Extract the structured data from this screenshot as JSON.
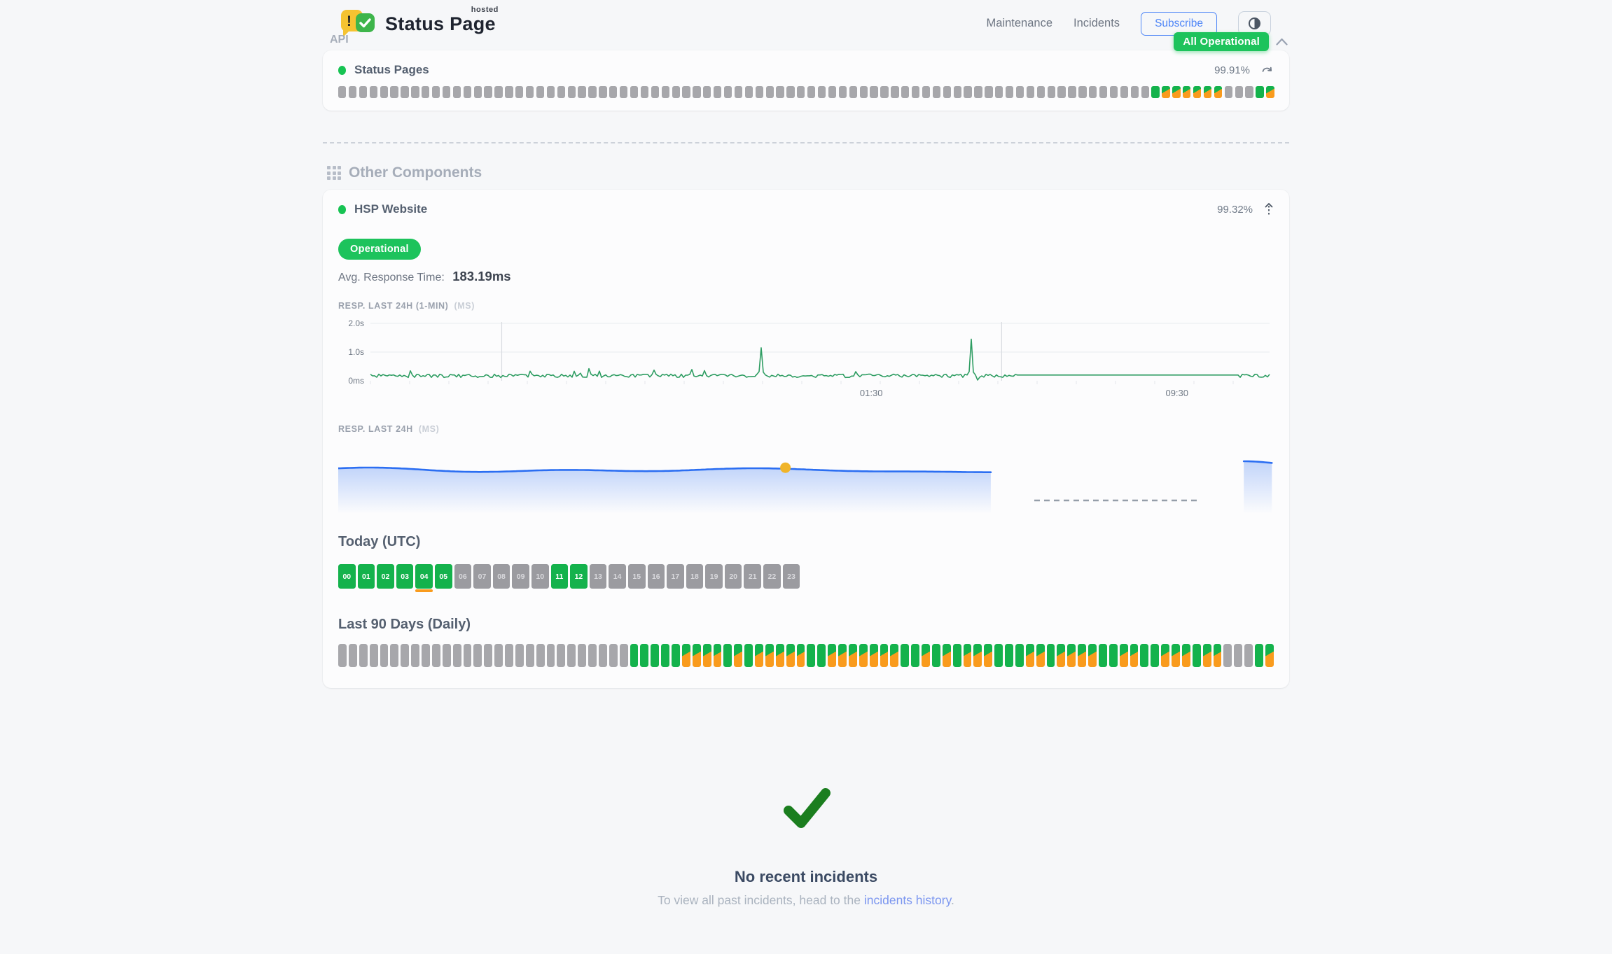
{
  "header": {
    "logo_title": "Status Page",
    "logo_superscript": "hosted",
    "logo_exclaim": "!",
    "nav": [
      {
        "label": "Maintenance"
      },
      {
        "label": "Incidents"
      }
    ],
    "subscribe_label": "Subscribe",
    "overall_status": "All Operational"
  },
  "api_section": {
    "title": "API",
    "component": {
      "name": "Status Pages",
      "uptime": "99.91%",
      "bars": [
        "n",
        "n",
        "n",
        "n",
        "n",
        "n",
        "n",
        "n",
        "n",
        "n",
        "n",
        "n",
        "n",
        "n",
        "n",
        "n",
        "n",
        "n",
        "n",
        "n",
        "n",
        "n",
        "n",
        "n",
        "n",
        "n",
        "n",
        "n",
        "n",
        "n",
        "n",
        "n",
        "n",
        "n",
        "n",
        "n",
        "n",
        "n",
        "n",
        "n",
        "n",
        "n",
        "n",
        "n",
        "n",
        "n",
        "n",
        "n",
        "n",
        "n",
        "n",
        "n",
        "n",
        "n",
        "n",
        "n",
        "n",
        "n",
        "n",
        "n",
        "n",
        "n",
        "n",
        "n",
        "n",
        "n",
        "n",
        "n",
        "n",
        "n",
        "n",
        "n",
        "n",
        "n",
        "n",
        "n",
        "n",
        "n",
        "u",
        "d",
        "d",
        "d",
        "d",
        "d",
        "d",
        "n",
        "n",
        "n",
        "u",
        "d"
      ]
    }
  },
  "other_components": {
    "title": "Other Components",
    "component": {
      "name": "HSP Website",
      "uptime": "99.32%",
      "status_label": "Operational",
      "avg_response_label": "Avg. Response Time:",
      "avg_response_value": "183.19ms",
      "today_title": "Today (UTC)",
      "last90_title": "Last 90 Days (Daily)",
      "hours": [
        {
          "label": "00",
          "status": "u"
        },
        {
          "label": "01",
          "status": "u"
        },
        {
          "label": "02",
          "status": "u"
        },
        {
          "label": "03",
          "status": "u"
        },
        {
          "label": "04",
          "status": "u",
          "marker": true
        },
        {
          "label": "05",
          "status": "u"
        },
        {
          "label": "06",
          "status": "n"
        },
        {
          "label": "07",
          "status": "n"
        },
        {
          "label": "08",
          "status": "n"
        },
        {
          "label": "09",
          "status": "n"
        },
        {
          "label": "10",
          "status": "n"
        },
        {
          "label": "11",
          "status": "u"
        },
        {
          "label": "12",
          "status": "u"
        },
        {
          "label": "13",
          "status": "n"
        },
        {
          "label": "14",
          "status": "n"
        },
        {
          "label": "15",
          "status": "n"
        },
        {
          "label": "16",
          "status": "n"
        },
        {
          "label": "17",
          "status": "n"
        },
        {
          "label": "18",
          "status": "n"
        },
        {
          "label": "19",
          "status": "n"
        },
        {
          "label": "20",
          "status": "n"
        },
        {
          "label": "21",
          "status": "n"
        },
        {
          "label": "22",
          "status": "n"
        },
        {
          "label": "23",
          "status": "n"
        }
      ],
      "days": [
        "n",
        "n",
        "n",
        "n",
        "n",
        "n",
        "n",
        "n",
        "n",
        "n",
        "n",
        "n",
        "n",
        "n",
        "n",
        "n",
        "n",
        "n",
        "n",
        "n",
        "n",
        "n",
        "n",
        "n",
        "n",
        "n",
        "n",
        "n",
        "u",
        "u",
        "u",
        "u",
        "u",
        "d",
        "d",
        "d",
        "d",
        "u",
        "d",
        "u",
        "d",
        "d",
        "d",
        "d",
        "d",
        "u",
        "u",
        "d",
        "d",
        "d",
        "d",
        "d",
        "d",
        "d",
        "u",
        "u",
        "d",
        "u",
        "d",
        "u",
        "d",
        "d",
        "d",
        "u",
        "u",
        "u",
        "d",
        "d",
        "u",
        "d",
        "d",
        "d",
        "d",
        "u",
        "u",
        "d",
        "d",
        "u",
        "u",
        "d",
        "d",
        "d",
        "u",
        "d",
        "d",
        "n",
        "n",
        "n",
        "u",
        "d"
      ]
    }
  },
  "incidents": {
    "title": "No recent incidents",
    "subtitle_prefix": "To view all past incidents, head to the",
    "link_text": "incidents history",
    "subtitle_suffix": "."
  },
  "chart_data": [
    {
      "type": "line",
      "title": "RESP. LAST 24H (1-MIN)",
      "unit": "(MS)",
      "ylim_ms": [
        0,
        2000
      ],
      "ylabel_ticks": [
        {
          "label": "2.0s",
          "ms": 2000
        },
        {
          "label": "1.0s",
          "ms": 1000
        },
        {
          "label": "0ms",
          "ms": 0
        }
      ],
      "x_ticks": [
        {
          "label": "01:30",
          "f": 0.557
        },
        {
          "label": "09:30",
          "f": 0.897
        }
      ],
      "baseline_ms": 180,
      "noise_band_ms": [
        115,
        230
      ],
      "spikes": [
        {
          "f": 0.435,
          "ms": 1150
        },
        {
          "f": 0.669,
          "ms": 1450
        }
      ],
      "dip": {
        "f": 0.676,
        "ms": 25
      },
      "flat_segment": {
        "from": 0.719,
        "to": 0.965,
        "ms": 200
      },
      "day_separators_f": [
        0.146,
        0.702
      ],
      "line_color": "#2e9d62",
      "grid": "horizontal"
    },
    {
      "type": "area",
      "title": "RESP. LAST 24H",
      "unit": "(MS)",
      "avg_ms": 183.19,
      "segments": [
        {
          "from": 0.0,
          "to": 0.698
        },
        {
          "from": 0.968,
          "to": 1.0
        }
      ],
      "gap_dash_line": {
        "from": 0.744,
        "to": 0.918
      },
      "marker": {
        "f": 0.478,
        "color": "#f0b429"
      },
      "line_color": "#2b6ef2"
    }
  ],
  "colors": {
    "green_bar": "#14b24c",
    "green_badge": "#1dc35c",
    "orange_degraded": "#f99b1d",
    "gray_bar": "#a7a7ab",
    "accent_blue": "#4f86f7",
    "link_blue": "#7b96f0",
    "check_green": "#1b7e1f",
    "background": "#f6f7f9"
  }
}
